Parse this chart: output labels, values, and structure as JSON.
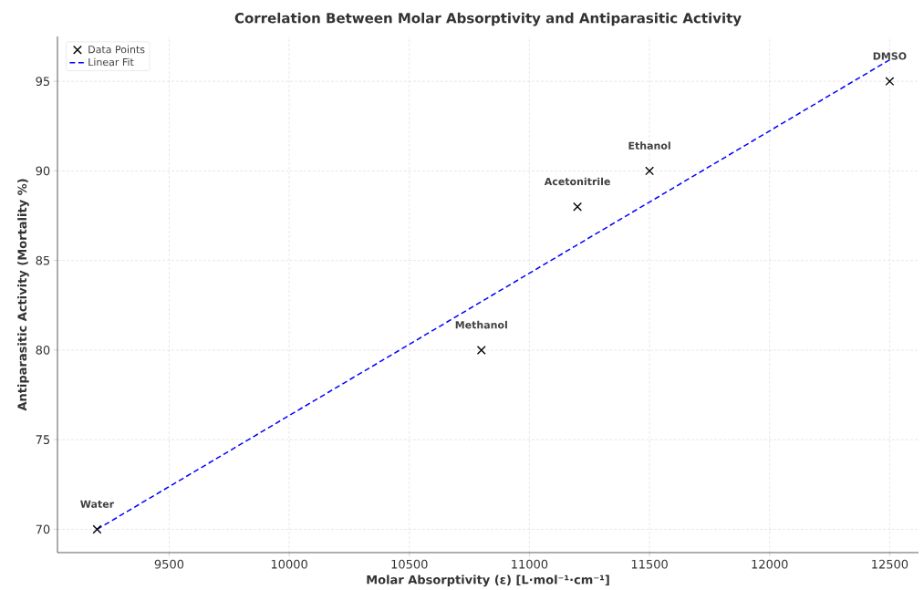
{
  "chart_data": {
    "type": "scatter",
    "title": "Correlation Between Molar Absorptivity and Antiparasitic Activity",
    "xlabel": "Molar Absorptivity (ε) [L·mol⁻¹·cm⁻¹]",
    "ylabel": "Antiparasitic Activity (Mortality %)",
    "series": [
      {
        "name": "Data Points",
        "color": "#000000",
        "marker": "cross",
        "x": [
          9200,
          10800,
          11200,
          11500,
          12500
        ],
        "values": [
          70,
          80,
          88,
          90,
          95
        ]
      },
      {
        "name": "Linear Fit",
        "type": "line",
        "color": "#0000ff",
        "line_style": "dashed",
        "marker": "none",
        "x": [
          9200,
          12500
        ],
        "values": [
          70.0,
          96.2
        ]
      }
    ],
    "annotations": [
      {
        "text": "Water",
        "x": 9200,
        "y": 70
      },
      {
        "text": "Methanol",
        "x": 10800,
        "y": 80
      },
      {
        "text": "Acetonitrile",
        "x": 11200,
        "y": 88
      },
      {
        "text": "Ethanol",
        "x": 11500,
        "y": 90
      },
      {
        "text": "DMSO",
        "x": 12500,
        "y": 95
      }
    ],
    "xlim": [
      9035,
      12620
    ],
    "ylim": [
      68.7,
      97.5
    ],
    "xticks": [
      9500,
      10000,
      10500,
      11000,
      11500,
      12000,
      12500
    ],
    "yticks": [
      70,
      75,
      80,
      85,
      90,
      95
    ],
    "grid": true,
    "legend": "top left"
  }
}
